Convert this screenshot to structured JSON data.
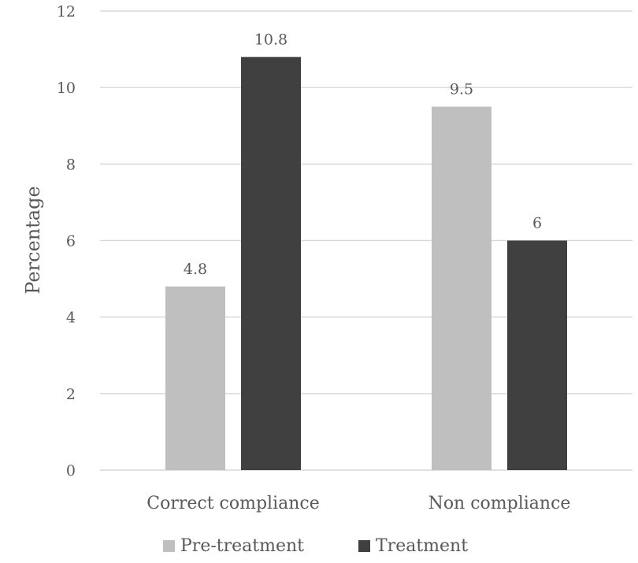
{
  "chart_data": {
    "type": "bar",
    "title": "",
    "xlabel": "",
    "ylabel": "Percentage",
    "ylim": [
      0,
      12
    ],
    "yticks": [
      0,
      2,
      4,
      6,
      8,
      10,
      12
    ],
    "grid": true,
    "legend_position": "bottom",
    "categories": [
      "Correct compliance",
      "Non compliance"
    ],
    "series": [
      {
        "name": "Pre-treatment",
        "color": "#bfbfbf",
        "values": [
          4.8,
          9.5
        ],
        "labels": [
          "4.8",
          "9.5"
        ]
      },
      {
        "name": "Treatment",
        "color": "#404040",
        "values": [
          10.8,
          6
        ],
        "labels": [
          "10.8",
          "6"
        ]
      }
    ]
  }
}
